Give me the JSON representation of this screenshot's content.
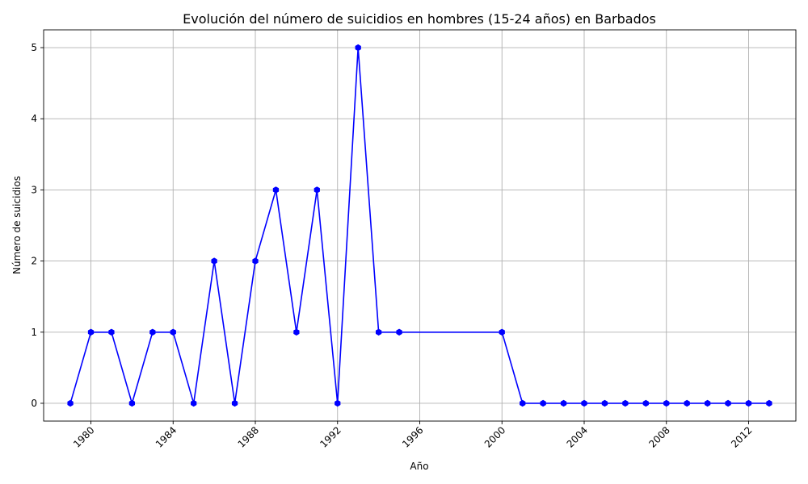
{
  "chart_data": {
    "type": "line",
    "title": "Evolución del número de suicidios en hombres (15-24 años) en Barbados",
    "xlabel": "Año",
    "ylabel": "Número de suicidios",
    "xlim": [
      1977.7,
      2014.3
    ],
    "ylim": [
      -0.25,
      5.25
    ],
    "x_ticks": [
      1980,
      1984,
      1988,
      1992,
      1996,
      2000,
      2004,
      2008,
      2012
    ],
    "y_ticks": [
      0,
      1,
      2,
      3,
      4,
      5
    ],
    "grid": true,
    "series": [
      {
        "color": "#0000ff",
        "marker": "hexagon",
        "x": [
          1979,
          1980,
          1981,
          1982,
          1983,
          1984,
          1985,
          1986,
          1987,
          1988,
          1989,
          1990,
          1991,
          1992,
          1993,
          1994,
          1995,
          2000,
          2001,
          2002,
          2003,
          2004,
          2005,
          2006,
          2007,
          2008,
          2009,
          2010,
          2011,
          2012,
          2013
        ],
        "y": [
          0,
          1,
          1,
          0,
          1,
          1,
          0,
          2,
          0,
          2,
          3,
          1,
          3,
          0,
          5,
          1,
          1,
          1,
          0,
          0,
          0,
          0,
          0,
          0,
          0,
          0,
          0,
          0,
          0,
          0,
          0
        ]
      }
    ]
  }
}
